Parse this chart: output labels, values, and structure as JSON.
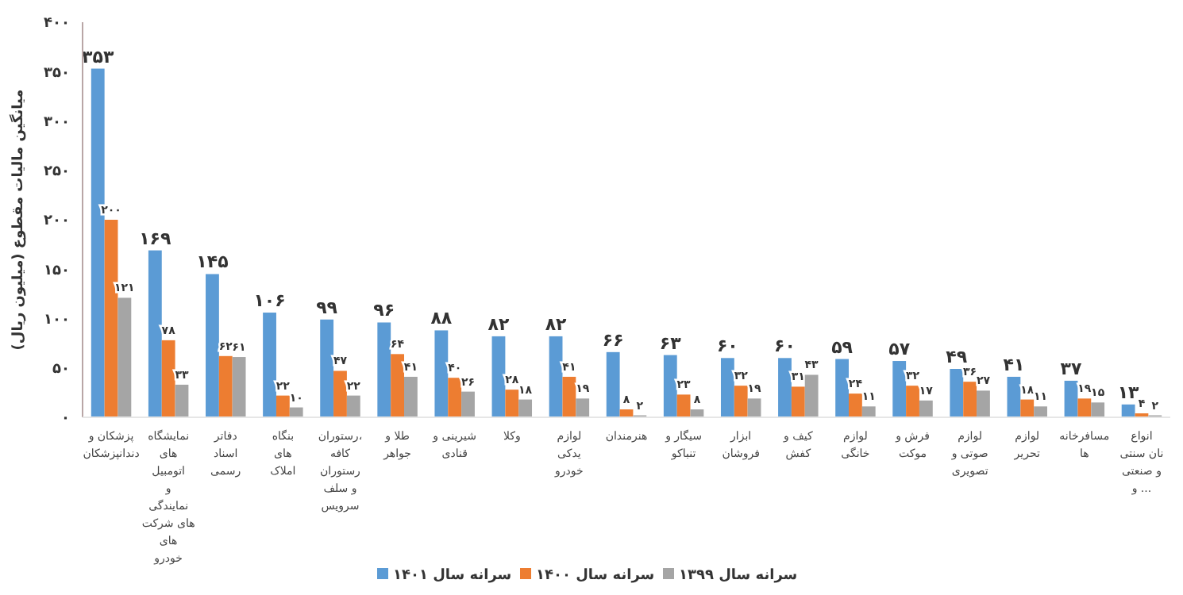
{
  "chart_data": {
    "type": "bar",
    "ylabel": "میانگین مالیات مقطوع (میلیون ریال)",
    "categories": [
      "پزشکان و دندانپزشکان",
      "نمایشگاه های اتومبیل و نمایندگی های شرکت های خودرو",
      "دفاتر اسناد رسمی",
      "بنگاه های املاک",
      "رستوران، کافه رستوران و سلف سرویس",
      "طلا و جواهر",
      "شیرینی و قنادی",
      "وکلا",
      "لوازم یدکی خودرو",
      "هنرمندان",
      "سیگار و تنباکو",
      "ابزار فروشان",
      "کیف و کفش",
      "لوازم خانگی",
      "فرش و موکت",
      "لوازم صوتی و تصویری",
      "لوازم تحریر",
      "مسافرخانه ها",
      "انواع نان سنتی و صنعتی و ..."
    ],
    "series": [
      {
        "name": "سرانه سال ۱۴۰۱",
        "color": "#5b9bd5",
        "values": [
          353,
          169,
          145,
          106,
          99,
          96,
          88,
          82,
          82,
          66,
          63,
          60,
          60,
          59,
          57,
          49,
          41,
          37,
          13
        ],
        "value_labels": [
          "۳۵۳",
          "۱۶۹",
          "۱۴۵",
          "۱۰۶",
          "۹۹",
          "۹۶",
          "۸۸",
          "۸۲",
          "۸۲",
          "۶۶",
          "۶۳",
          "۶۰",
          "۶۰",
          "۵۹",
          "۵۷",
          "۴۹",
          "۴۱",
          "۳۷",
          "۱۳"
        ]
      },
      {
        "name": "سرانه سال ۱۴۰۰",
        "color": "#ed7d31",
        "values": [
          200,
          78,
          62,
          22,
          47,
          64,
          40,
          28,
          41,
          8,
          23,
          32,
          31,
          24,
          32,
          36,
          18,
          19,
          4
        ],
        "value_labels": [
          "۲۰۰",
          "۷۸",
          "۶۲",
          "۲۲",
          "۴۷",
          "۶۴",
          "۴۰",
          "۲۸",
          "۴۱",
          "۸",
          "۲۳",
          "۳۲",
          "۳۱",
          "۲۴",
          "۳۲",
          "۳۶",
          "۱۸",
          "۱۹",
          "۴"
        ]
      },
      {
        "name": "سرانه سال ۱۳۹۹",
        "color": "#a5a5a5",
        "values": [
          121,
          33,
          61,
          10,
          22,
          41,
          26,
          18,
          19,
          2,
          8,
          19,
          43,
          11,
          17,
          27,
          11,
          15,
          2
        ],
        "value_labels": [
          "۱۲۱",
          "۳۳",
          "۶۱",
          "۱۰",
          "۲۲",
          "۴۱",
          "۲۶",
          "۱۸",
          "۱۹",
          "۲",
          "۸",
          "۱۹",
          "۴۳",
          "۱۱",
          "۱۷",
          "۲۷",
          "۱۱",
          "۱۵",
          "۲"
        ]
      }
    ],
    "ylim": [
      0,
      400
    ],
    "yticks": [
      {
        "value": 0,
        "label": "۰"
      },
      {
        "value": 50,
        "label": "۵۰"
      },
      {
        "value": 100,
        "label": "۱۰۰"
      },
      {
        "value": 150,
        "label": "۱۵۰"
      },
      {
        "value": 200,
        "label": "۲۰۰"
      },
      {
        "value": 250,
        "label": "۲۵۰"
      },
      {
        "value": 300,
        "label": "۳۰۰"
      },
      {
        "value": 350,
        "label": "۳۵۰"
      },
      {
        "value": 400,
        "label": "۴۰۰"
      }
    ],
    "grid": false,
    "legend": "bottom"
  }
}
